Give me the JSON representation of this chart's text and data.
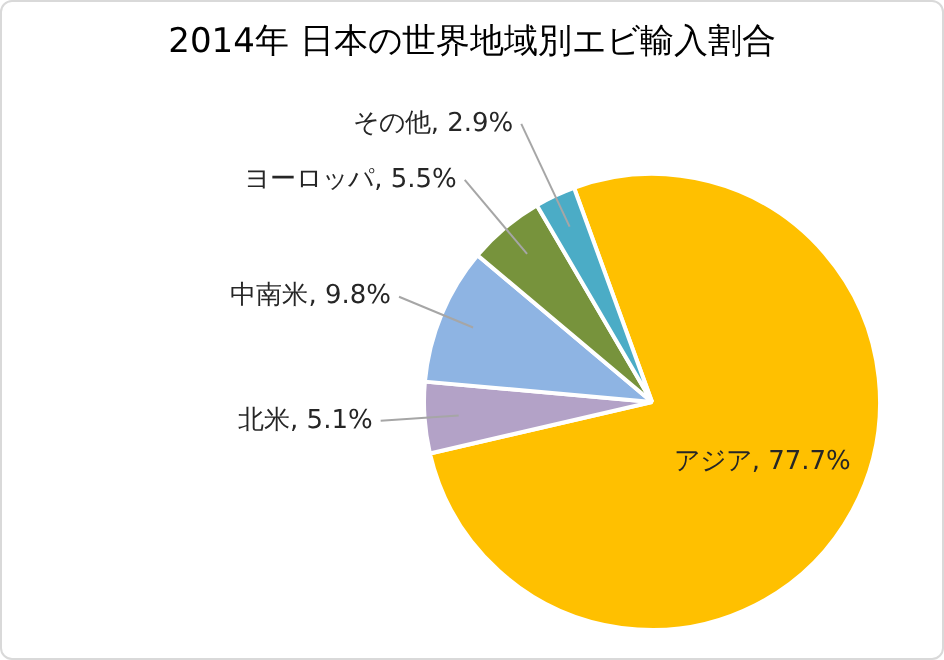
{
  "chart_data": {
    "type": "pie",
    "title": "2014年  日本の世界地域別エビ輸入割合",
    "categories": [
      "アジア",
      "北米",
      "中南米",
      "ヨーロッパ",
      "その他"
    ],
    "values": [
      77.7,
      5.1,
      9.8,
      5.5,
      2.9
    ],
    "value_labels": [
      "77.7%",
      "5.1%",
      "9.8%",
      "5.5%",
      "2.9%"
    ],
    "colors": [
      "#ffc000",
      "#b3a2c7",
      "#8eb4e3",
      "#77933c",
      "#4bacc6"
    ],
    "legend": false
  }
}
